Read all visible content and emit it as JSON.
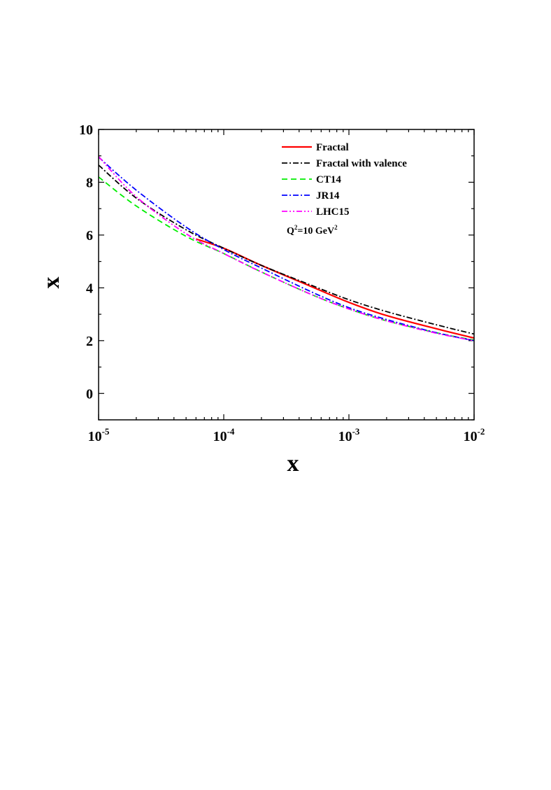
{
  "chart_data": {
    "type": "line",
    "title": "",
    "xlabel": "x",
    "ylabel": "x",
    "xscale": "log",
    "xlim": [
      1e-05,
      0.01
    ],
    "ylim": [
      -1,
      10
    ],
    "x_ticks": [
      {
        "base": "10",
        "exp": "-5",
        "value": 1e-05
      },
      {
        "base": "10",
        "exp": "-4",
        "value": 0.0001
      },
      {
        "base": "10",
        "exp": "-3",
        "value": 0.001
      },
      {
        "base": "10",
        "exp": "-2",
        "value": 0.01
      }
    ],
    "y_ticks": [
      "0",
      "2",
      "4",
      "6",
      "8",
      "10"
    ],
    "legend_position": "top-right",
    "annotation": {
      "q": "Q",
      "sup1": "2",
      "mid": "=10 GeV",
      "sup2": "2"
    },
    "series": [
      {
        "name": "Fractal",
        "color": "#ff0000",
        "dash": "solid",
        "x": [
          6e-05,
          0.0001,
          0.0002,
          0.0005,
          0.001,
          0.002,
          0.005,
          0.01
        ],
        "y": [
          5.85,
          5.5,
          4.85,
          4.05,
          3.45,
          2.95,
          2.45,
          2.1
        ]
      },
      {
        "name": "Fractal with valence",
        "color": "#000000",
        "dash": "dashdot",
        "x": [
          1e-05,
          2e-05,
          5e-05,
          0.0001,
          0.0002,
          0.0005,
          0.001,
          0.002,
          0.005,
          0.01
        ],
        "y": [
          8.65,
          7.4,
          6.2,
          5.5,
          4.85,
          4.1,
          3.55,
          3.1,
          2.6,
          2.25
        ]
      },
      {
        "name": "CT14",
        "color": "#00ee00",
        "dash": "dash",
        "x": [
          1e-05,
          2e-05,
          5e-05,
          0.0001,
          0.0002,
          0.0005,
          0.001,
          0.002,
          0.005,
          0.01
        ],
        "y": [
          8.2,
          7.1,
          5.95,
          5.3,
          4.6,
          3.75,
          3.2,
          2.75,
          2.3,
          2.02
        ]
      },
      {
        "name": "JR14",
        "color": "#0000ff",
        "dash": "dashdot",
        "x": [
          1e-05,
          2e-05,
          5e-05,
          0.0001,
          0.0002,
          0.0005,
          0.001,
          0.002,
          0.005,
          0.01
        ],
        "y": [
          8.95,
          7.7,
          6.3,
          5.45,
          4.75,
          3.85,
          3.25,
          2.8,
          2.3,
          2.0
        ]
      },
      {
        "name": "LHC15",
        "color": "#ff00ff",
        "dash": "dashdotdot",
        "x": [
          1e-05,
          2e-05,
          5e-05,
          0.0001,
          0.0002,
          0.0005,
          0.001,
          0.002,
          0.005,
          0.01
        ],
        "y": [
          8.97,
          7.45,
          6.05,
          5.3,
          4.6,
          3.75,
          3.2,
          2.75,
          2.28,
          2.0
        ]
      }
    ]
  }
}
